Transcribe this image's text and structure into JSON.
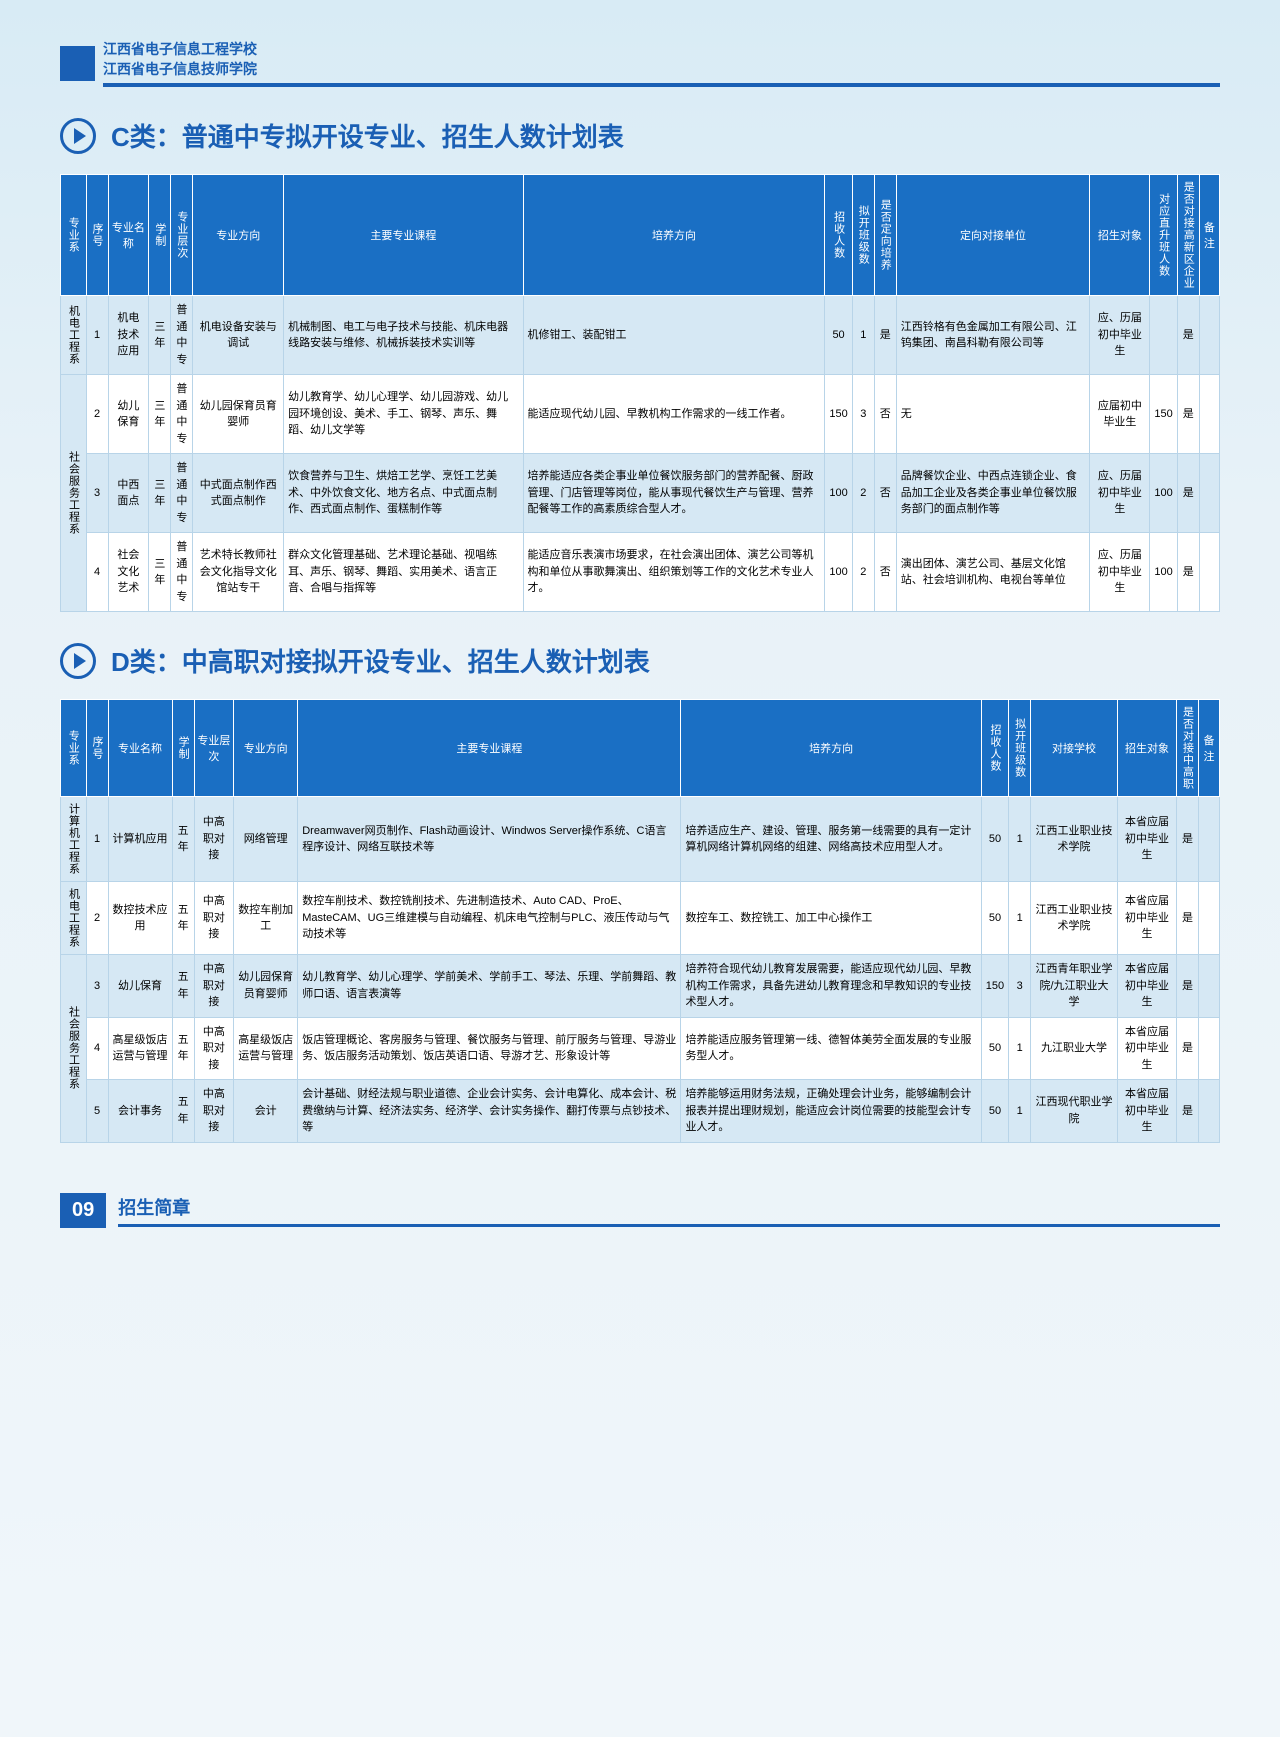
{
  "header": {
    "school1": "江西省电子信息工程学校",
    "school2": "江西省电子信息技师学院"
  },
  "sectionC": {
    "title": "C类：普通中专拟开设专业、招生人数计划表",
    "columns": [
      "专业系",
      "序号",
      "专业名称",
      "学制",
      "专业层次",
      "专业方向",
      "主要专业课程",
      "培养方向",
      "招收人数",
      "拟开班级数",
      "是否定向培养",
      "定向对接单位",
      "招生对象",
      "对应直升班人数",
      "是否对接高新区企业",
      "备注"
    ],
    "rows": [
      {
        "dept": "机电工程系",
        "deptRows": 1,
        "seq": "1",
        "name": "机电技术应用",
        "years": "三年",
        "level": "普通中专",
        "direction": "机电设备安装与调试",
        "courses": "机械制图、电工与电子技术与技能、机床电器线路安装与维修、机械拆装技术实训等",
        "cultivate": "机修钳工、装配钳工",
        "num": "50",
        "classes": "1",
        "dx": "是",
        "unit": "江西铃格有色金属加工有限公司、江钨集团、南昌科勒有限公司等",
        "target": "应、历届初中毕业生",
        "upnum": "",
        "hitech": "是",
        "note": ""
      },
      {
        "dept": "社会服务工程系",
        "deptRows": 3,
        "seq": "2",
        "name": "幼儿保育",
        "years": "三年",
        "level": "普通中专",
        "direction": "幼儿园保育员育婴师",
        "courses": "幼儿教育学、幼儿心理学、幼儿园游戏、幼儿园环境创设、美术、手工、钢琴、声乐、舞蹈、幼儿文学等",
        "cultivate": "能适应现代幼儿园、早教机构工作需求的一线工作者。",
        "num": "150",
        "classes": "3",
        "dx": "否",
        "unit": "无",
        "target": "应届初中毕业生",
        "upnum": "150",
        "hitech": "是",
        "note": ""
      },
      {
        "seq": "3",
        "name": "中西面点",
        "years": "三年",
        "level": "普通中专",
        "direction": "中式面点制作西式面点制作",
        "courses": "饮食营养与卫生、烘焙工艺学、烹饪工艺美术、中外饮食文化、地方名点、中式面点制作、西式面点制作、蛋糕制作等",
        "cultivate": "培养能适应各类企事业单位餐饮服务部门的营养配餐、厨政管理、门店管理等岗位，能从事现代餐饮生产与管理、营养配餐等工作的高素质综合型人才。",
        "num": "100",
        "classes": "2",
        "dx": "否",
        "unit": "品牌餐饮企业、中西点连锁企业、食品加工企业及各类企事业单位餐饮服务部门的面点制作等",
        "target": "应、历届初中毕业生",
        "upnum": "100",
        "hitech": "是",
        "note": ""
      },
      {
        "seq": "4",
        "name": "社会文化艺术",
        "years": "三年",
        "level": "普通中专",
        "direction": "艺术特长教师社会文化指导文化馆站专干",
        "courses": "群众文化管理基础、艺术理论基础、视唱练耳、声乐、钢琴、舞蹈、实用美术、语言正音、合唱与指挥等",
        "cultivate": "能适应音乐表演市场要求，在社会演出团体、演艺公司等机构和单位从事歌舞演出、组织策划等工作的文化艺术专业人才。",
        "num": "100",
        "classes": "2",
        "dx": "否",
        "unit": "演出团体、演艺公司、基层文化馆站、社会培训机构、电视台等单位",
        "target": "应、历届初中毕业生",
        "upnum": "100",
        "hitech": "是",
        "note": ""
      }
    ]
  },
  "sectionD": {
    "title": "D类：中高职对接拟开设专业、招生人数计划表",
    "columns": [
      "专业系",
      "序号",
      "专业名称",
      "学制",
      "专业层次",
      "专业方向",
      "主要专业课程",
      "培养方向",
      "招收人数",
      "拟开班级数",
      "对接学校",
      "招生对象",
      "是否对接中高职",
      "备注"
    ],
    "rows": [
      {
        "dept": "计算机工程系",
        "deptRows": 1,
        "seq": "1",
        "name": "计算机应用",
        "years": "五年",
        "level": "中高职对接",
        "direction": "网络管理",
        "courses": "Dreamwaver网页制作、Flash动画设计、Windwos Server操作系统、C语言程序设计、网络互联技术等",
        "cultivate": "培养适应生产、建设、管理、服务第一线需要的具有一定计算机网络计算机网络的组建、网络高技术应用型人才。",
        "num": "50",
        "classes": "1",
        "school": "江西工业职业技术学院",
        "target": "本省应届初中毕业生",
        "link": "是",
        "note": ""
      },
      {
        "dept": "机电工程系",
        "deptRows": 1,
        "seq": "2",
        "name": "数控技术应用",
        "years": "五年",
        "level": "中高职对接",
        "direction": "数控车削加工",
        "courses": "数控车削技术、数控铣削技术、先进制造技术、Auto CAD、ProE、MasteCAM、UG三维建模与自动编程、机床电气控制与PLC、液压传动与气动技术等",
        "cultivate": "数控车工、数控铣工、加工中心操作工",
        "num": "50",
        "classes": "1",
        "school": "江西工业职业技术学院",
        "target": "本省应届初中毕业生",
        "link": "是",
        "note": ""
      },
      {
        "dept": "社会服务工程系",
        "deptRows": 3,
        "seq": "3",
        "name": "幼儿保育",
        "years": "五年",
        "level": "中高职对接",
        "direction": "幼儿园保育员育婴师",
        "courses": "幼儿教育学、幼儿心理学、学前美术、学前手工、琴法、乐理、学前舞蹈、教师口语、语言表演等",
        "cultivate": "培养符合现代幼儿教育发展需要，能适应现代幼儿园、早教机构工作需求，具备先进幼儿教育理念和早教知识的专业技术型人才。",
        "num": "150",
        "classes": "3",
        "school": "江西青年职业学院/九江职业大学",
        "target": "本省应届初中毕业生",
        "link": "是",
        "note": ""
      },
      {
        "seq": "4",
        "name": "高星级饭店运营与管理",
        "years": "五年",
        "level": "中高职对接",
        "direction": "高星级饭店运营与管理",
        "courses": "饭店管理概论、客房服务与管理、餐饮服务与管理、前厅服务与管理、导游业务、饭店服务活动策划、饭店英语口语、导游才艺、形象设计等",
        "cultivate": "培养能适应服务管理第一线、德智体美劳全面发展的专业服务型人才。",
        "num": "50",
        "classes": "1",
        "school": "九江职业大学",
        "target": "本省应届初中毕业生",
        "link": "是",
        "note": ""
      },
      {
        "seq": "5",
        "name": "会计事务",
        "years": "五年",
        "level": "中高职对接",
        "direction": "会计",
        "courses": "会计基础、财经法规与职业道德、企业会计实务、会计电算化、成本会计、税费缴纳与计算、经济法实务、经济学、会计实务操作、翻打传票与点钞技术、等",
        "cultivate": "培养能够运用财务法规，正确处理会计业务，能够编制会计报表并提出理财规划，能适应会计岗位需要的技能型会计专业人才。",
        "num": "50",
        "classes": "1",
        "school": "江西现代职业学院",
        "target": "本省应届初中毕业生",
        "link": "是",
        "note": ""
      }
    ]
  },
  "footer": {
    "page": "09",
    "text": "招生简章"
  }
}
